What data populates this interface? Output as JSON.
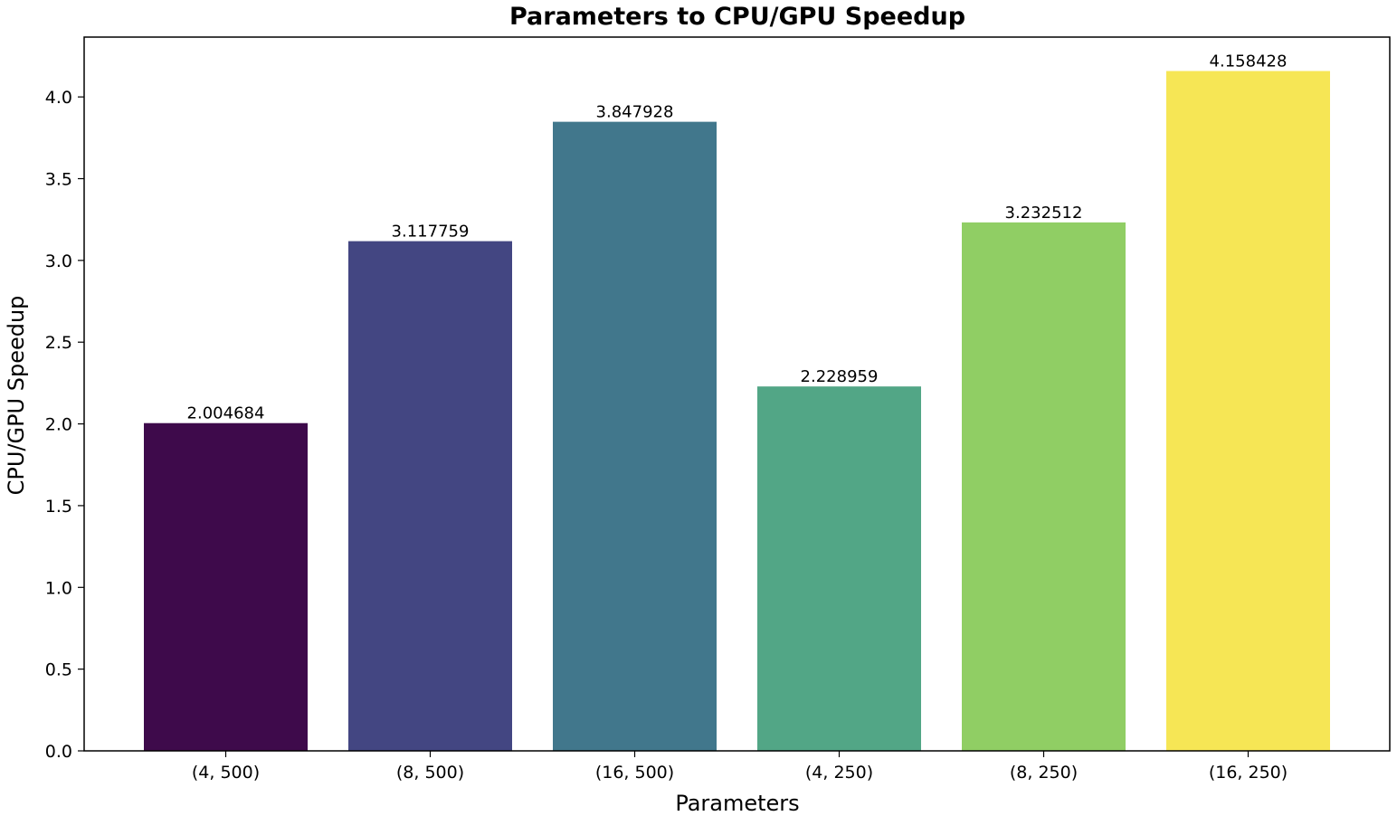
{
  "chart_data": {
    "type": "bar",
    "title": "Parameters to CPU/GPU Speedup",
    "xlabel": "Parameters",
    "ylabel": "CPU/GPU Speedup",
    "categories": [
      "(4, 500)",
      "(8, 500)",
      "(16, 500)",
      "(4, 250)",
      "(8, 250)",
      "(16, 250)"
    ],
    "values": [
      2.004684,
      3.117759,
      3.847928,
      2.228959,
      3.232512,
      4.158428
    ],
    "value_labels": [
      "2.004684",
      "3.117759",
      "3.847928",
      "2.228959",
      "3.232512",
      "4.158428"
    ],
    "colors": [
      "#3e0a4b",
      "#434682",
      "#41778c",
      "#52a686",
      "#90ce64",
      "#f6e655"
    ],
    "yticks": [
      "0.0",
      "0.5",
      "1.0",
      "1.5",
      "2.0",
      "2.5",
      "3.0",
      "3.5",
      "4.0"
    ],
    "ytick_values": [
      0,
      0.5,
      1.0,
      1.5,
      2.0,
      2.5,
      3.0,
      3.5,
      4.0
    ],
    "ylim": [
      0,
      4.366
    ],
    "grid": false,
    "legend": "none"
  }
}
